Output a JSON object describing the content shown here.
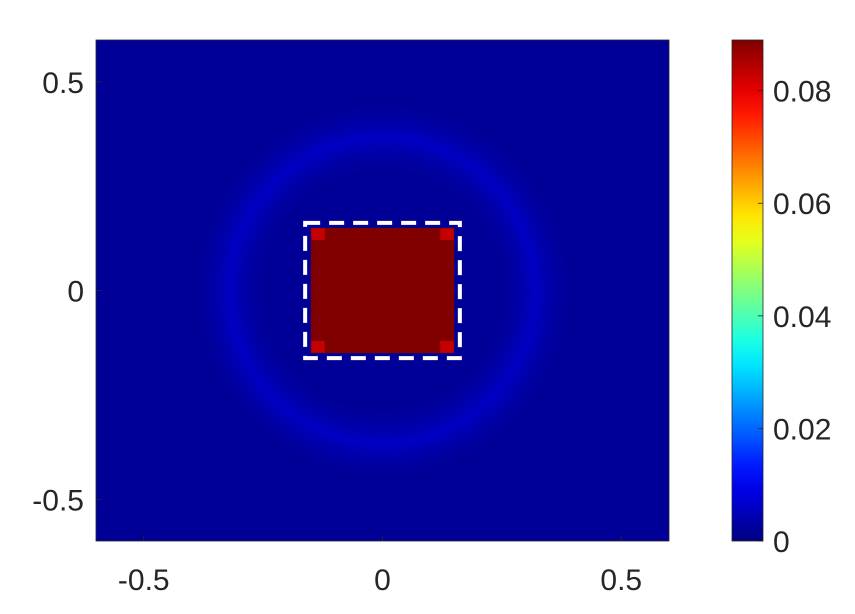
{
  "chart_data": {
    "type": "heatmap",
    "title": "",
    "xlabel": "",
    "ylabel": "",
    "xlim": [
      -0.6,
      0.6
    ],
    "ylim": [
      -0.6,
      0.6
    ],
    "x_ticks": [
      -0.5,
      0,
      0.5
    ],
    "x_tick_labels": [
      "-0.5",
      "0",
      "0.5"
    ],
    "y_ticks": [
      -0.5,
      0,
      0.5
    ],
    "y_tick_labels": [
      "-0.5",
      "0",
      "0.5"
    ],
    "colormap": "jet",
    "color_range": [
      0,
      0.089
    ],
    "colorbar_ticks": [
      0,
      0.02,
      0.04,
      0.06,
      0.08
    ],
    "colorbar_tick_labels": [
      "0",
      "0.02",
      "0.04",
      "0.06",
      "0.08"
    ],
    "background_value": 0.002,
    "ring": {
      "center": [
        0,
        0
      ],
      "radius": 0.32,
      "width": 0.09,
      "value": 0.006
    },
    "square": {
      "x_range": [
        -0.15,
        0.15
      ],
      "y_range": [
        -0.15,
        0.15
      ],
      "value": 0.089
    },
    "corner_patches": {
      "size": 0.028,
      "value": 0.083,
      "centers": [
        [
          -0.135,
          0.135
        ],
        [
          0.135,
          0.135
        ],
        [
          -0.135,
          -0.135
        ],
        [
          0.135,
          -0.135
        ]
      ]
    },
    "dashed_outline": {
      "x_range": [
        -0.162,
        0.162
      ],
      "y_range": [
        -0.162,
        0.162
      ],
      "color": "#ffffff"
    },
    "grid": false,
    "legend": "colorbar-right"
  }
}
